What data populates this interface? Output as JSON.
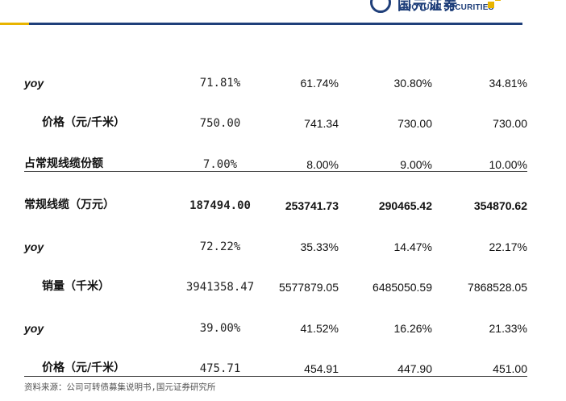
{
  "header": {
    "logo_cn": "国元证券",
    "logo_en": "GUOYUAN SECURITIES",
    "colors": {
      "brand": "#1f3f7a",
      "accent": "#e8b400"
    }
  },
  "rows": [
    {
      "label": "yoy",
      "style": "italic",
      "values": [
        "71.81%",
        "61.74%",
        "30.80%",
        "34.81%"
      ]
    },
    {
      "label": "价格（元/千米）",
      "style": "indent",
      "values": [
        "750.00",
        "741.34",
        "730.00",
        "730.00"
      ]
    },
    {
      "label": "占常规线缆份额",
      "style": "normal",
      "values": [
        "7.00%",
        "8.00%",
        "9.00%",
        "10.00%"
      ]
    },
    {
      "label": "常规线缆（万元）",
      "style": "bold-sep",
      "values": [
        "187494.00",
        "253741.73",
        "290465.42",
        "354870.62"
      ]
    },
    {
      "label": "yoy",
      "style": "italic",
      "values": [
        "72.22%",
        "35.33%",
        "14.47%",
        "22.17%"
      ]
    },
    {
      "label": "销量（千米）",
      "style": "indent",
      "values": [
        "3941358.47",
        "5577879.05",
        "6485050.59",
        "7868528.05"
      ]
    },
    {
      "label": "yoy",
      "style": "italic",
      "values": [
        "39.00%",
        "41.52%",
        "16.26%",
        "21.33%"
      ]
    },
    {
      "label": "价格（元/千米）",
      "style": "indent",
      "values": [
        "475.71",
        "454.91",
        "447.90",
        "451.00"
      ]
    }
  ],
  "footnote": "资料来源：公司可转债募集说明书,国元证券研究所"
}
